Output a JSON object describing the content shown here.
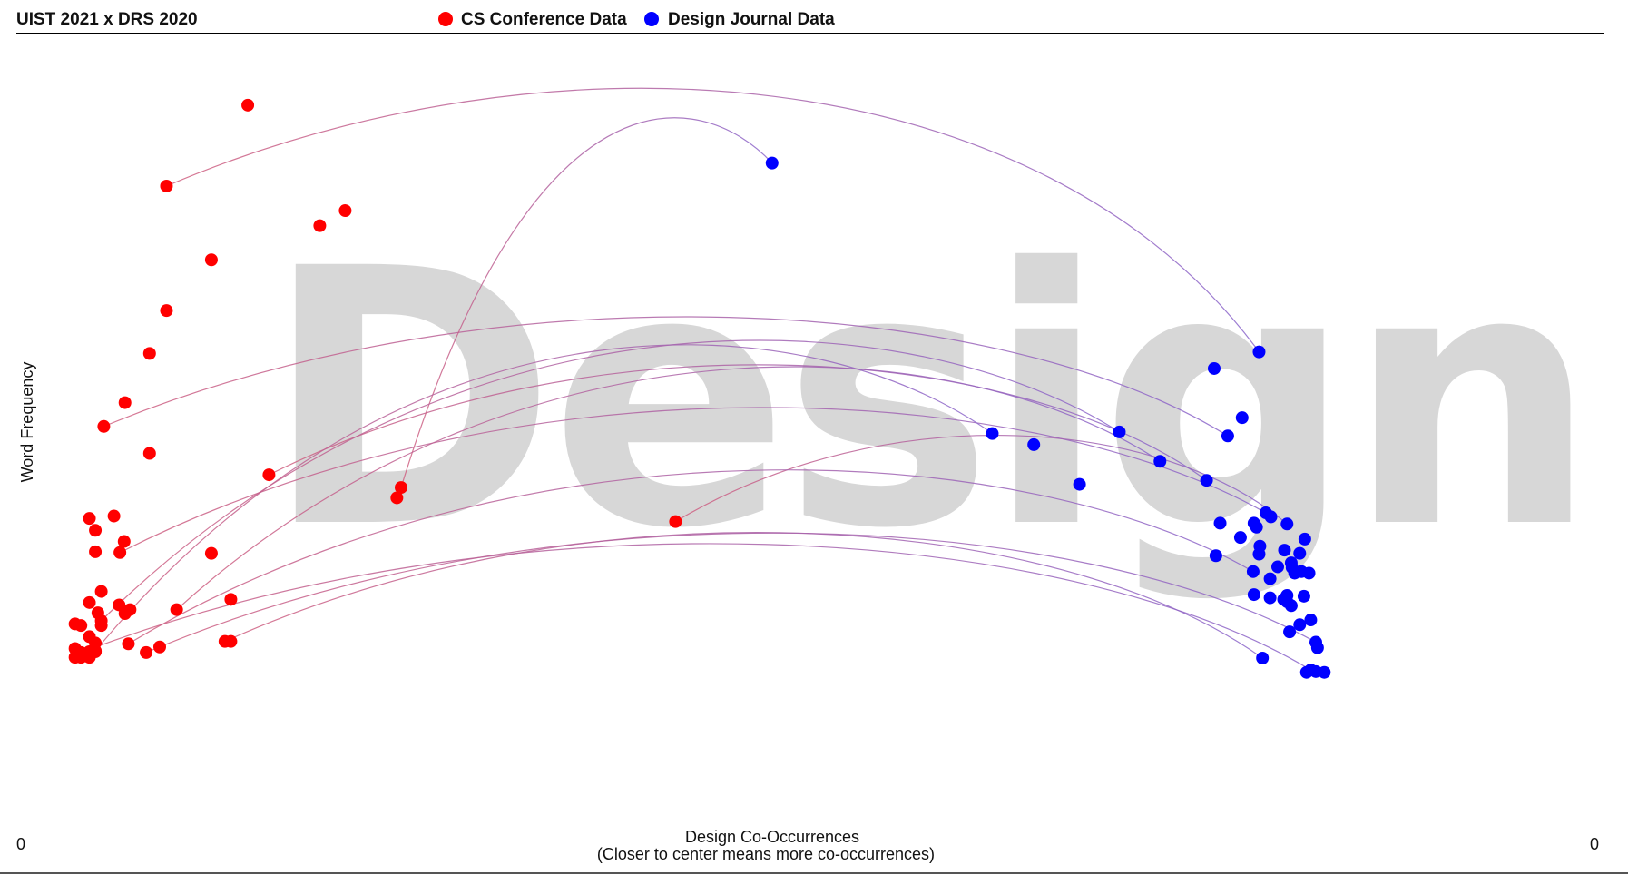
{
  "header": {
    "title": "UIST 2021 x DRS 2020",
    "legend": [
      {
        "label": "CS Conference Data",
        "color": "#ff0000"
      },
      {
        "label": "Design Journal Data",
        "color": "#0000ff"
      }
    ]
  },
  "watermark": "Design",
  "axes": {
    "ylabel": "Word Frequency",
    "xlabel_line1": "Design Co-Occurrences",
    "xlabel_line2": "(Closer to center means more co-occurrences)",
    "left_zero": "0",
    "right_zero": "0"
  },
  "chart_data": {
    "type": "scatter",
    "title": "UIST 2021 x DRS 2020",
    "xlabel": "Design Co-Occurrences (Closer to center means more co-occurrences)",
    "ylabel": "Word Frequency",
    "legend_position": "top",
    "grid": false,
    "series": [
      {
        "name": "CS Conference Data",
        "color": "#ff0000",
        "points": [
          [
            239,
            57
          ],
          [
            143,
            159
          ],
          [
            354,
            190
          ],
          [
            324,
            209
          ],
          [
            196,
            252
          ],
          [
            143,
            316
          ],
          [
            123,
            370
          ],
          [
            94,
            432
          ],
          [
            69,
            462
          ],
          [
            123,
            496
          ],
          [
            264,
            523
          ],
          [
            420,
            539
          ],
          [
            415,
            552
          ],
          [
            52,
            578
          ],
          [
            81,
            575
          ],
          [
            59,
            593
          ],
          [
            93,
            607
          ],
          [
            59,
            620
          ],
          [
            88,
            621
          ],
          [
            196,
            622
          ],
          [
            744,
            582
          ],
          [
            219,
            680
          ],
          [
            155,
            693
          ],
          [
            62,
            697
          ],
          [
            87,
            687
          ],
          [
            66,
            670
          ],
          [
            52,
            684
          ],
          [
            66,
            707
          ],
          [
            100,
            693
          ],
          [
            94,
            698
          ],
          [
            66,
            713
          ],
          [
            35,
            711
          ],
          [
            42,
            713
          ],
          [
            52,
            727
          ],
          [
            59,
            735
          ],
          [
            59,
            745
          ],
          [
            35,
            742
          ],
          [
            98,
            736
          ],
          [
            212,
            733
          ],
          [
            219,
            733
          ],
          [
            135,
            740
          ],
          [
            119,
            747
          ],
          [
            42,
            747
          ],
          [
            52,
            746
          ],
          [
            35,
            753
          ],
          [
            42,
            753
          ],
          [
            52,
            753
          ],
          [
            59,
            746
          ]
        ]
      },
      {
        "name": "Design Journal Data",
        "color": "#0000ff",
        "points": [
          [
            858,
            130
          ],
          [
            1433,
            368
          ],
          [
            1380,
            389
          ],
          [
            1413,
            451
          ],
          [
            1396,
            474
          ],
          [
            1268,
            469
          ],
          [
            1118,
            471
          ],
          [
            1167,
            485
          ],
          [
            1316,
            506
          ],
          [
            1371,
            530
          ],
          [
            1221,
            535
          ],
          [
            1441,
            571
          ],
          [
            1447,
            576
          ],
          [
            1466,
            585
          ],
          [
            1387,
            584
          ],
          [
            1427,
            584
          ],
          [
            1430,
            589
          ],
          [
            1411,
            602
          ],
          [
            1487,
            604
          ],
          [
            1434,
            613
          ],
          [
            1463,
            618
          ],
          [
            1481,
            622
          ],
          [
            1471,
            634
          ],
          [
            1382,
            625
          ],
          [
            1433,
            623
          ],
          [
            1455,
            639
          ],
          [
            1472,
            640
          ],
          [
            1426,
            645
          ],
          [
            1475,
            647
          ],
          [
            1483,
            645
          ],
          [
            1492,
            647
          ],
          [
            1446,
            654
          ],
          [
            1427,
            674
          ],
          [
            1446,
            678
          ],
          [
            1466,
            675
          ],
          [
            1466,
            683
          ],
          [
            1486,
            676
          ],
          [
            1462,
            680
          ],
          [
            1471,
            688
          ],
          [
            1494,
            706
          ],
          [
            1481,
            712
          ],
          [
            1469,
            721
          ],
          [
            1500,
            734
          ],
          [
            1502,
            741
          ],
          [
            1437,
            754
          ],
          [
            1494,
            769
          ],
          [
            1489,
            772
          ],
          [
            1500,
            771
          ],
          [
            1510,
            772
          ]
        ]
      }
    ],
    "connections": [
      [
        [
          143,
          159
        ],
        [
          1433,
          368
        ]
      ],
      [
        [
          69,
          462
        ],
        [
          1396,
          474
        ]
      ],
      [
        [
          264,
          523
        ],
        [
          1371,
          530
        ]
      ],
      [
        [
          420,
          539
        ],
        [
          858,
          130
        ]
      ],
      [
        [
          88,
          621
        ],
        [
          1441,
          571
        ]
      ],
      [
        [
          744,
          582
        ],
        [
          1466,
          585
        ]
      ],
      [
        [
          66,
          707
        ],
        [
          1268,
          469
        ]
      ],
      [
        [
          59,
          745
        ],
        [
          1118,
          471
        ]
      ],
      [
        [
          98,
          736
        ],
        [
          1426,
          645
        ]
      ],
      [
        [
          155,
          693
        ],
        [
          1316,
          506
        ]
      ],
      [
        [
          212,
          733
        ],
        [
          1437,
          754
        ]
      ],
      [
        [
          42,
          747
        ],
        [
          1494,
          769
        ]
      ],
      [
        [
          119,
          747
        ],
        [
          1500,
          734
        ]
      ]
    ]
  }
}
